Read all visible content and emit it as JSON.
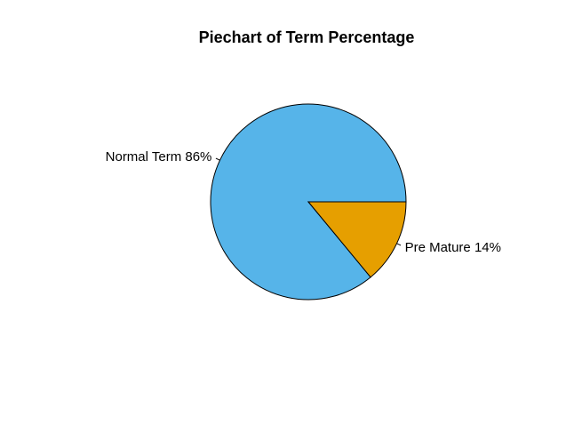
{
  "chart_data": {
    "type": "pie",
    "title": "Piechart of Term Percentage",
    "slices": [
      {
        "label": "Normal Term 86%",
        "value": 86,
        "color": "#56B4E9"
      },
      {
        "label": "Pre Mature 14%",
        "value": 14,
        "color": "#E69F00"
      }
    ],
    "start_angle_deg": 0,
    "direction": "counterclockwise",
    "border_color": "#000000",
    "legend": "none"
  }
}
